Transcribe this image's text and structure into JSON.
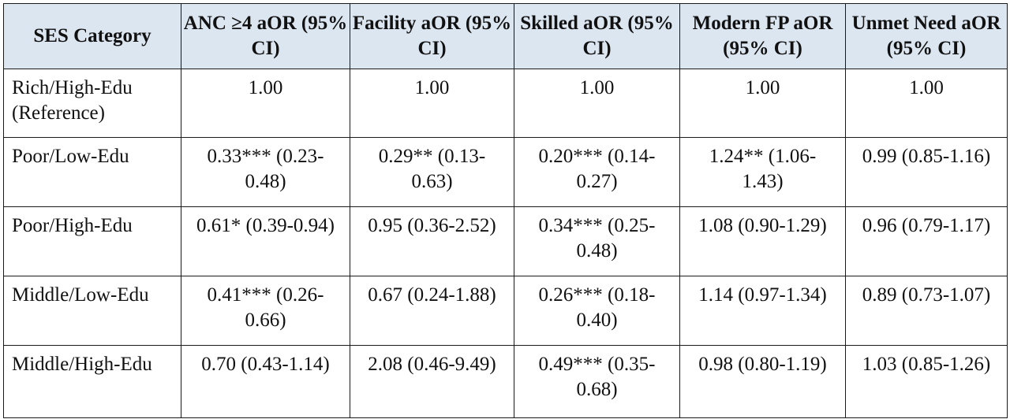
{
  "table": {
    "headers": [
      "SES Category",
      "ANC ≥4 aOR (95% CI)",
      "Facility aOR (95% CI)",
      "Skilled aOR (95% CI)",
      "Modern FP aOR (95% CI)",
      "Unmet Need aOR (95% CI)"
    ],
    "rows": [
      [
        "Rich/High-Edu (Reference)",
        "1.00",
        "1.00",
        "1.00",
        "1.00",
        "1.00"
      ],
      [
        "Poor/Low-Edu",
        "0.33*** (0.23-0.48)",
        "0.29** (0.13-0.63)",
        "0.20*** (0.14-0.27)",
        "1.24** (1.06-1.43)",
        "0.99 (0.85-1.16)"
      ],
      [
        "Poor/High-Edu",
        "0.61* (0.39-0.94)",
        "0.95 (0.36-2.52)",
        "0.34*** (0.25-0.48)",
        "1.08 (0.90-1.29)",
        "0.96 (0.79-1.17)"
      ],
      [
        "Middle/Low-Edu",
        "0.41*** (0.26-0.66)",
        "0.67 (0.24-1.88)",
        "0.26*** (0.18-0.40)",
        "1.14 (0.97-1.34)",
        "0.89 (0.73-1.07)"
      ],
      [
        "Middle/High-Edu",
        "0.70 (0.43-1.14)",
        "2.08 (0.46-9.49)",
        "0.49*** (0.35-0.68)",
        "0.98 (0.80-1.19)",
        "1.03 (0.85-1.26)"
      ]
    ]
  }
}
